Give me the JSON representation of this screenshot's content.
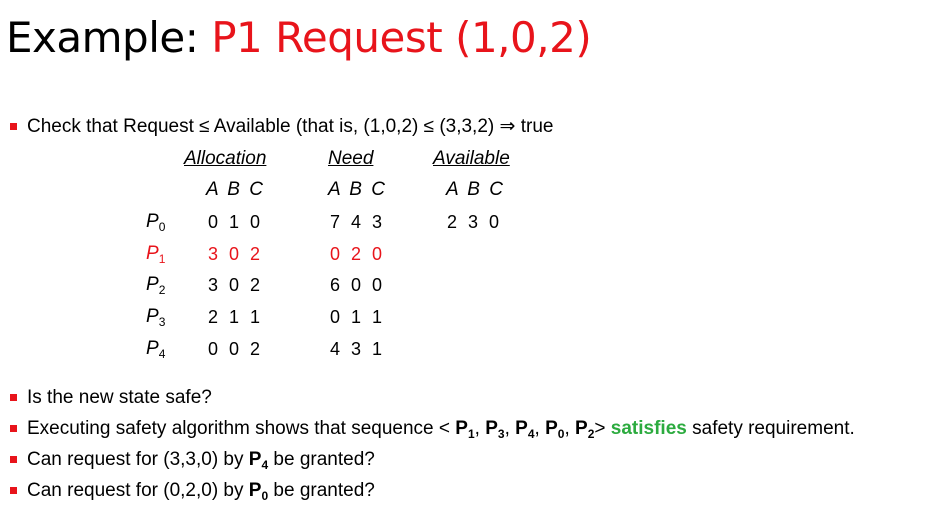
{
  "title": {
    "prefix": "Example: ",
    "accent": "P1 Request (1,0,2)"
  },
  "check_text": "Check that Request ≤ Available (that is, (1,0,2) ≤ (3,3,2) ⇒ true",
  "table": {
    "headers": [
      "Allocation",
      "Need",
      "Available"
    ],
    "subheaders": [
      "A B C",
      "A B C",
      "A B C"
    ],
    "rows": [
      {
        "proc": "P",
        "sub": "0",
        "allocation": "0 1 0",
        "need": "7 4 3",
        "available": "2 3 0",
        "highlight": false
      },
      {
        "proc": "P",
        "sub": "1",
        "allocation": "3 0 2",
        "need": "0 2 0",
        "available": "",
        "highlight": true
      },
      {
        "proc": "P",
        "sub": "2",
        "allocation": "3 0 2",
        "need": "6 0 0",
        "available": "",
        "highlight": false
      },
      {
        "proc": "P",
        "sub": "3",
        "allocation": "2 1 1",
        "need": "0 1 1",
        "available": "",
        "highlight": false
      },
      {
        "proc": "P",
        "sub": "4",
        "allocation": "0 0 2",
        "need": "4 3 1",
        "available": "",
        "highlight": false
      }
    ]
  },
  "bullets": {
    "safe_question": "Is the new state safe?",
    "safety_prefix": "Executing safety algorithm shows that sequence < ",
    "sequence": [
      {
        "p": "P",
        "s": "1",
        "sep": ", "
      },
      {
        "p": "P",
        "s": "3",
        "sep": ", "
      },
      {
        "p": "P",
        "s": "4",
        "sep": ", "
      },
      {
        "p": "P",
        "s": "0",
        "sep": ", "
      },
      {
        "p": "P",
        "s": "2",
        "sep": ""
      }
    ],
    "safety_close": ">",
    "safety_keyword": "satisfies",
    "safety_suffix": " safety requirement.",
    "req1_prefix": "Can request for (3,3,0) by ",
    "req1_p": "P",
    "req1_s": "4",
    "req1_suffix": " be granted?",
    "req2_prefix": "Can request for (0,2,0) by ",
    "req2_p": "P",
    "req2_s": "0",
    "req2_suffix": " be granted?"
  },
  "colors": {
    "accent": "#e8141b",
    "green": "#2cab3f"
  }
}
